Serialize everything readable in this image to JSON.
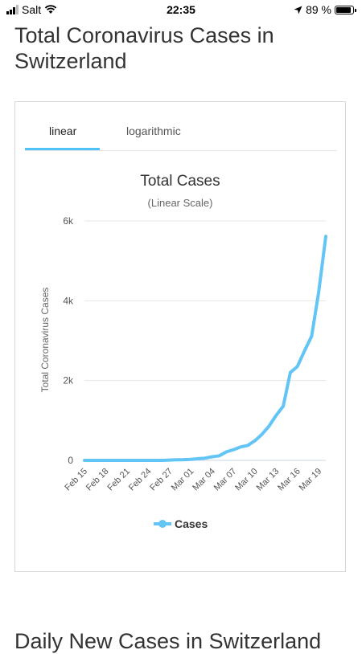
{
  "status_bar": {
    "carrier": "Salt",
    "time": "22:35",
    "battery": "89 %",
    "battery_level": 0.89,
    "icons": [
      "signal-icon",
      "wifi-icon",
      "location-arrow-icon",
      "battery-icon"
    ]
  },
  "page": {
    "title": "Total Coronavirus Cases in Switzerland",
    "next_title": "Daily New Cases in Switzerland"
  },
  "tabs": [
    {
      "label": "linear",
      "active": true
    },
    {
      "label": "logarithmic",
      "active": false
    }
  ],
  "colors": {
    "accent": "#4fc3f7",
    "series": "#62c5f5",
    "grid": "#e6e6e6"
  },
  "chart_data": {
    "type": "line",
    "title": "Total Cases",
    "subtitle": "(Linear Scale)",
    "ylabel": "Total Coronavirus Cases",
    "xlabel": "",
    "ylim": [
      0,
      6000
    ],
    "yticks": [
      0,
      2000,
      4000,
      6000
    ],
    "ytick_labels": [
      "0",
      "2k",
      "4k",
      "6k"
    ],
    "grid": true,
    "legend": "bottom-center",
    "x_tick_labels": [
      "Feb 15",
      "Feb 18",
      "Feb 21",
      "Feb 24",
      "Feb 27",
      "Mar 01",
      "Mar 04",
      "Mar 07",
      "Mar 10",
      "Mar 13",
      "Mar 16",
      "Mar 19"
    ],
    "x": [
      "Feb 15",
      "Feb 16",
      "Feb 17",
      "Feb 18",
      "Feb 19",
      "Feb 20",
      "Feb 21",
      "Feb 22",
      "Feb 23",
      "Feb 24",
      "Feb 25",
      "Feb 26",
      "Feb 27",
      "Feb 28",
      "Feb 29",
      "Mar 01",
      "Mar 02",
      "Mar 03",
      "Mar 04",
      "Mar 05",
      "Mar 06",
      "Mar 07",
      "Mar 08",
      "Mar 09",
      "Mar 10",
      "Mar 11",
      "Mar 12",
      "Mar 13",
      "Mar 14",
      "Mar 15",
      "Mar 16",
      "Mar 17",
      "Mar 18",
      "Mar 19",
      "Mar 20"
    ],
    "series": [
      {
        "name": "Cases",
        "values": [
          0,
          0,
          0,
          0,
          0,
          0,
          0,
          0,
          0,
          0,
          1,
          1,
          8,
          15,
          18,
          27,
          42,
          56,
          90,
          114,
          214,
          268,
          337,
          374,
          491,
          652,
          858,
          1125,
          1359,
          2200,
          2353,
          2742,
          3113,
          4222,
          5615
        ]
      }
    ]
  }
}
